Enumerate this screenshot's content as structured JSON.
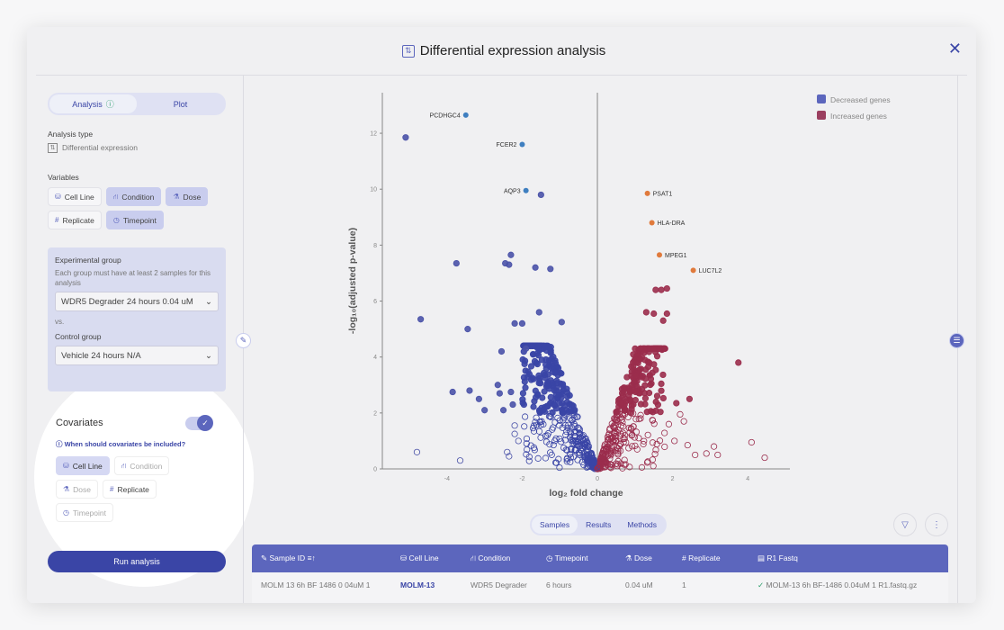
{
  "title": "Differential expression analysis",
  "left": {
    "tabs": [
      {
        "label": "Analysis",
        "icon": "arrow-up-circle"
      },
      {
        "label": "Plot"
      }
    ],
    "analysis_type_label": "Analysis type",
    "analysis_type": "Differential expression",
    "variables_label": "Variables",
    "variables": [
      {
        "label": "Cell Line",
        "icon": "⛁",
        "selected": false
      },
      {
        "label": "Condition",
        "icon": "⛙",
        "selected": true
      },
      {
        "label": "Dose",
        "icon": "⚗",
        "selected": true
      },
      {
        "label": "Replicate",
        "icon": "#",
        "selected": false
      },
      {
        "label": "Timepoint",
        "icon": "◷",
        "selected": true
      }
    ],
    "experimental_label": "Experimental group",
    "experimental_desc": "Each group must have at least 2 samples for this analysis",
    "experimental_value": "WDR5 Degrader 24 hours 0.04 uM",
    "vs": "vs.",
    "control_label": "Control group",
    "control_value": "Vehicle 24 hours N/A",
    "covariates_label": "Covariates",
    "covariates_enabled": true,
    "covariates_help": "When should covariates be included?",
    "covariates": [
      {
        "label": "Cell Line",
        "icon": "⛁",
        "state": "sel"
      },
      {
        "label": "Condition",
        "icon": "⛙",
        "state": "dis"
      },
      {
        "label": "Dose",
        "icon": "⚗",
        "state": "dis"
      },
      {
        "label": "Replicate",
        "icon": "#",
        "state": ""
      },
      {
        "label": "Timepoint",
        "icon": "◷",
        "state": "dis"
      }
    ],
    "run_label": "Run analysis"
  },
  "chart_data": {
    "type": "scatter",
    "xlabel": "log₂ fold change",
    "ylabel": "-log₁₀(adjusted p-value)",
    "xlim": [
      -5.72,
      5.12
    ],
    "ylim": [
      0,
      13.45
    ],
    "xticks": [
      -4,
      -2,
      0,
      2,
      4
    ],
    "yticks": [
      0,
      2,
      4,
      6,
      8,
      10,
      12
    ],
    "legend": [
      {
        "label": "Decreased genes",
        "color": "#5c66bd"
      },
      {
        "label": "Increased genes",
        "color": "#9b3f60"
      }
    ],
    "legend_position": "top-right",
    "significance_threshold": 2,
    "labeled": [
      {
        "gene": "PCDHGC4",
        "x": -3.5,
        "y": 12.65,
        "color": "#3f7fc0"
      },
      {
        "gene": "FCER2",
        "x": -2.0,
        "y": 11.6,
        "color": "#3f7fc0"
      },
      {
        "gene": "AQP3",
        "x": -1.9,
        "y": 9.95,
        "color": "#3f7fc0"
      },
      {
        "gene": "PSAT1",
        "x": 1.33,
        "y": 9.85,
        "color": "#e07a3c"
      },
      {
        "gene": "HLA-DRA",
        "x": 1.45,
        "y": 8.8,
        "color": "#e07a3c"
      },
      {
        "gene": "MPEG1",
        "x": 1.65,
        "y": 7.65,
        "color": "#e07a3c"
      },
      {
        "gene": "LUC7L2",
        "x": 2.55,
        "y": 7.1,
        "color": "#e07a3c"
      }
    ],
    "decreased": [
      [
        -5.1,
        11.85
      ],
      [
        -1.5,
        9.8
      ],
      [
        -3.75,
        7.35
      ],
      [
        -2.45,
        7.35
      ],
      [
        -2.35,
        7.3
      ],
      [
        -2.3,
        7.65
      ],
      [
        -1.65,
        7.2
      ],
      [
        -1.25,
        7.15
      ],
      [
        -4.7,
        5.35
      ],
      [
        -3.45,
        5.0
      ],
      [
        -2.2,
        5.2
      ],
      [
        -2.0,
        5.2
      ],
      [
        -0.95,
        5.25
      ],
      [
        -1.55,
        5.6
      ],
      [
        -2.55,
        4.2
      ],
      [
        -1.9,
        4.3
      ],
      [
        -3.85,
        2.75
      ],
      [
        -3.4,
        2.8
      ],
      [
        -3.15,
        2.5
      ],
      [
        -3.0,
        2.1
      ],
      [
        -2.65,
        3.0
      ],
      [
        -2.6,
        2.7
      ],
      [
        -2.5,
        2.1
      ],
      [
        -2.3,
        2.75
      ],
      [
        -2.25,
        2.3
      ],
      [
        -4.8,
        0.6
      ],
      [
        -3.65,
        0.3
      ],
      [
        -2.4,
        0.6
      ],
      [
        -2.35,
        0.45
      ],
      [
        -2.1,
        1.0
      ],
      [
        -2.2,
        1.55
      ],
      [
        -2.2,
        1.25
      ]
    ],
    "increased": [
      [
        3.75,
        3.8
      ],
      [
        1.55,
        6.4
      ],
      [
        1.7,
        6.4
      ],
      [
        1.85,
        6.45
      ],
      [
        1.3,
        5.6
      ],
      [
        1.5,
        5.55
      ],
      [
        1.75,
        5.3
      ],
      [
        1.85,
        5.55
      ],
      [
        2.45,
        2.5
      ],
      [
        2.2,
        1.95
      ],
      [
        2.1,
        2.35
      ],
      [
        2.3,
        1.7
      ],
      [
        2.4,
        0.85
      ],
      [
        2.6,
        0.5
      ],
      [
        2.9,
        0.55
      ],
      [
        3.2,
        0.5
      ],
      [
        3.1,
        0.8
      ],
      [
        4.1,
        0.95
      ],
      [
        4.45,
        0.4
      ],
      [
        2.05,
        1.0
      ],
      [
        1.9,
        1.6
      ]
    ]
  },
  "bottom": {
    "tabs": [
      "Samples",
      "Results",
      "Methods"
    ],
    "columns": [
      "Sample ID",
      "Cell Line",
      "Condition",
      "Timepoint",
      "Dose",
      "Replicate",
      "R1 Fastq"
    ],
    "rows": [
      [
        "MOLM 13 6h BF 1486 0 04uM 1",
        "MOLM-13",
        "WDR5 Degrader",
        "6 hours",
        "0.04 uM",
        "1",
        "MOLM-13 6h BF-1486 0.04uM 1 R1.fastq.gz"
      ]
    ]
  }
}
